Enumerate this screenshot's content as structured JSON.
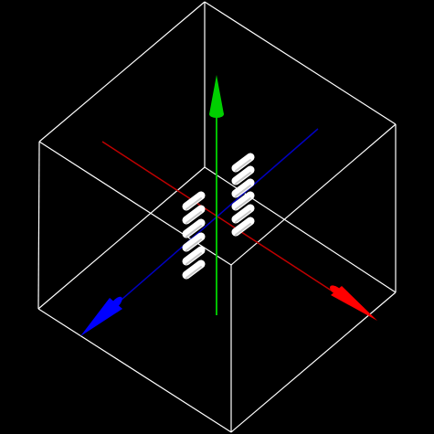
{
  "viewer": {
    "background": "#000000",
    "bounding_box_color": "#ffffff",
    "object_color": "#ffffff",
    "object_shading": "#c8c8c8"
  },
  "axes": [
    {
      "name": "x-axis",
      "color": "#c00000",
      "arrow_color": "#ff0000",
      "icon": "arrow-cone-icon"
    },
    {
      "name": "y-axis",
      "color": "#00c000",
      "arrow_color": "#00d000",
      "icon": "arrow-cone-icon"
    },
    {
      "name": "z-axis",
      "color": "#0000c0",
      "arrow_color": "#0000ff",
      "icon": "arrow-cone-icon"
    }
  ],
  "objects": {
    "left_stack_count": 6,
    "right_stack_count": 6
  }
}
